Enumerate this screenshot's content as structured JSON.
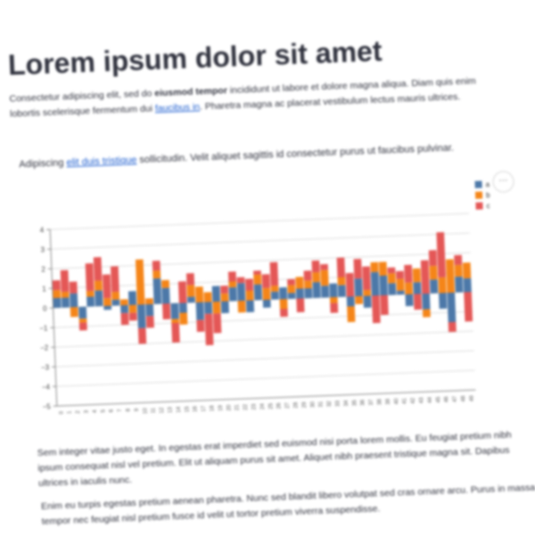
{
  "page": {
    "title": "Lorem ipsum dolor sit amet",
    "intro": {
      "pre": "Consectetur adipiscing elit, sed do",
      "bold": "eiusmod tempor",
      "mid": "incididunt ut labore et dolore magna aliqua. Diam quis enim lobortis scelerisque fermentum dui",
      "link": "faucibus in",
      "post": ". Pharetra magna ac placerat vestibulum lectus mauris ultrices."
    },
    "second": {
      "pre": "Adipiscing",
      "link": "elit duis tristique",
      "post": "sollicitudin. Velit aliquet sagittis id consectetur purus ut faucibus pulvinar."
    },
    "para3": "Sem integer vitae justo eget. In egestas erat imperdiet sed euismod nisi porta lorem mollis. Eu feugiat pretium nibh ipsum consequat nisl vel pretium. Elit ut aliquam purus sit amet. Aliquet nibh praesent tristique magna sit. Dapibus ultrices in iaculis nunc.",
    "para4": "Enim eu turpis egestas pretium aenean pharetra. Nunc sed blandit libero volutpat sed cras ornare arcu. Purus in massa tempor nec feugiat nisl pretium fusce id velit ut tortor pretium viverra suspendisse.",
    "more_label": "···"
  },
  "colors": {
    "a": "#4c78a8",
    "b": "#f58518",
    "c": "#e45756",
    "grid": "#dddddd",
    "axis": "#888888"
  },
  "chart_data": {
    "type": "bar",
    "stacked": true,
    "categories": [
      "0",
      "1",
      "2",
      "3",
      "4",
      "5",
      "6",
      "7",
      "8",
      "9",
      "10",
      "11",
      "12",
      "13",
      "14",
      "15",
      "16",
      "17",
      "18",
      "19",
      "20",
      "21",
      "22",
      "23",
      "24",
      "25",
      "26",
      "27",
      "28",
      "29",
      "30",
      "31",
      "32",
      "33",
      "34",
      "35",
      "36",
      "37",
      "38",
      "39",
      "40",
      "41",
      "42",
      "43",
      "44",
      "45",
      "46",
      "47",
      "48",
      "49"
    ],
    "series": [
      {
        "name": "a",
        "values": [
          0.5,
          0.5,
          0.7,
          -0.6,
          0.5,
          0.8,
          -0.2,
          0.3,
          -0.4,
          0.7,
          -1.2,
          -0.6,
          1.3,
          0.8,
          -0.8,
          -0.5,
          0.3,
          -0.9,
          -0.6,
          0.8,
          -0.6,
          0.7,
          0.9,
          -0.6,
          0.8,
          -0.4,
          0.4,
          0.6,
          0.3,
          0.5,
          0.5,
          0.8,
          0.6,
          0.7,
          0.6,
          -0.5,
          0.9,
          -0.6,
          1.2,
          1.0,
          0.6,
          0.2,
          -0.6,
          0.6,
          -0.8,
          0.7,
          -0.8,
          -1.5,
          0.8,
          0.7
        ]
      },
      {
        "name": "b",
        "values": [
          0.4,
          0.3,
          -0.5,
          -0.2,
          0.3,
          0.5,
          0.4,
          0.4,
          0.3,
          -0.4,
          2.3,
          0.3,
          0.4,
          0.4,
          -0.2,
          -0.6,
          0.6,
          0.8,
          0.5,
          -0.6,
          0.4,
          0.3,
          -0.6,
          0.5,
          0.5,
          0.6,
          0.3,
          -0.5,
          0.4,
          0.6,
          0.4,
          0.5,
          0.8,
          -0.3,
          0.4,
          -0.8,
          -0.4,
          0.3,
          0.5,
          0.7,
          0.5,
          0.6,
          0.6,
          0.7,
          -0.4,
          0.7,
          0.8,
          1.7,
          0.6,
          0.8
        ]
      },
      {
        "name": "c",
        "values": [
          0.5,
          1.1,
          0.6,
          -0.4,
          1.4,
          1.2,
          1.2,
          1.3,
          -0.6,
          -0.4,
          -0.8,
          -0.6,
          0.5,
          -0.8,
          -1.0,
          1.1,
          0.6,
          -0.6,
          -1.6,
          -1.0,
          0.4,
          0.5,
          0.3,
          0.6,
          0.2,
          0.7,
          1.2,
          -0.4,
          0.3,
          -0.7,
          0.5,
          0.6,
          0.3,
          -0.5,
          1.0,
          1.2,
          1.0,
          1.2,
          -1.4,
          -1.0,
          0.3,
          0.4,
          0.9,
          -0.8,
          1.7,
          0.8,
          2.3,
          -0.5,
          0.5,
          -1.5
        ]
      }
    ],
    "ylim": [
      -5,
      4
    ],
    "yticks": [
      -5,
      -4,
      -3,
      -2,
      -1,
      0,
      1,
      2,
      3,
      4
    ],
    "title": "",
    "xlabel": "",
    "ylabel": "",
    "legend": [
      "a",
      "b",
      "c"
    ],
    "legend_position": "top-right"
  }
}
